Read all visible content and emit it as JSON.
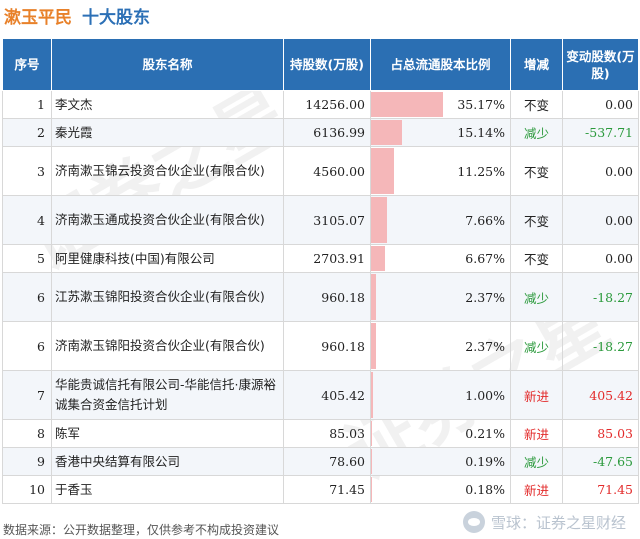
{
  "title": {
    "company": "漱玉平民",
    "section": "十大股东"
  },
  "headers": {
    "rank": "序号",
    "name": "股东名称",
    "shares": "持股数(万股)",
    "ratio": "占总流通股本比例",
    "change": "增减",
    "delta": "变动股数(万股)"
  },
  "rows": [
    {
      "rank": "1",
      "name": "李文杰",
      "shares": "14256.00",
      "ratio": "35.17%",
      "ratio_value": 35.17,
      "change": "不变",
      "change_type": "same",
      "delta": "0.00"
    },
    {
      "rank": "2",
      "name": "秦光霞",
      "shares": "6136.99",
      "ratio": "15.14%",
      "ratio_value": 15.14,
      "change": "减少",
      "change_type": "down",
      "delta": "-537.71"
    },
    {
      "rank": "3",
      "name": "济南漱玉锦云投资合伙企业(有限合伙)",
      "shares": "4560.00",
      "ratio": "11.25%",
      "ratio_value": 11.25,
      "change": "不变",
      "change_type": "same",
      "delta": "0.00"
    },
    {
      "rank": "4",
      "name": "济南漱玉通成投资合伙企业(有限合伙)",
      "shares": "3105.07",
      "ratio": "7.66%",
      "ratio_value": 7.66,
      "change": "不变",
      "change_type": "same",
      "delta": "0.00"
    },
    {
      "rank": "5",
      "name": "阿里健康科技(中国)有限公司",
      "shares": "2703.91",
      "ratio": "6.67%",
      "ratio_value": 6.67,
      "change": "不变",
      "change_type": "same",
      "delta": "0.00"
    },
    {
      "rank": "6",
      "name": "江苏漱玉锦阳投资合伙企业(有限合伙)",
      "shares": "960.18",
      "ratio": "2.37%",
      "ratio_value": 2.37,
      "change": "减少",
      "change_type": "down",
      "delta": "-18.27"
    },
    {
      "rank": "6",
      "name": "济南漱玉锦阳投资合伙企业(有限合伙)",
      "shares": "960.18",
      "ratio": "2.37%",
      "ratio_value": 2.37,
      "change": "减少",
      "change_type": "down",
      "delta": "-18.27"
    },
    {
      "rank": "7",
      "name": "华能贵诚信托有限公司-华能信托·康源裕诚集合资金信托计划",
      "shares": "405.42",
      "ratio": "1.00%",
      "ratio_value": 1.0,
      "change": "新进",
      "change_type": "new",
      "delta": "405.42"
    },
    {
      "rank": "8",
      "name": "陈军",
      "shares": "85.03",
      "ratio": "0.21%",
      "ratio_value": 0.21,
      "change": "新进",
      "change_type": "new",
      "delta": "85.03"
    },
    {
      "rank": "9",
      "name": "香港中央结算有限公司",
      "shares": "78.60",
      "ratio": "0.19%",
      "ratio_value": 0.19,
      "change": "减少",
      "change_type": "down",
      "delta": "-47.65"
    },
    {
      "rank": "10",
      "name": "于香玉",
      "shares": "71.45",
      "ratio": "0.18%",
      "ratio_value": 0.18,
      "change": "新进",
      "change_type": "new",
      "delta": "71.45"
    }
  ],
  "colors": {
    "header_bg": "#2b6fb3",
    "bar": "#f5b7b9",
    "down": "#2b9a3c",
    "new": "#e32b2b",
    "company": "#e8812a",
    "section": "#2c70b6"
  },
  "footer": {
    "source": "数据来源：公开数据整理，仅供参考不构成投资建议",
    "brand": "雪球：证券之星财经",
    "brand_icon": "snowball-icon"
  },
  "watermark": "证券之星"
}
